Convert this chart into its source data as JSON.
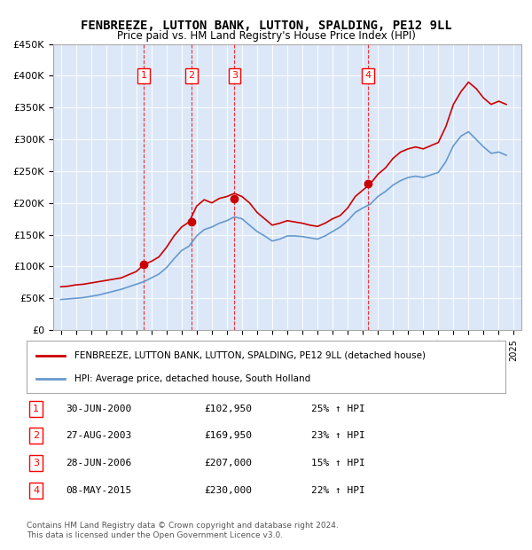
{
  "title": "FENBREEZE, LUTTON BANK, LUTTON, SPALDING, PE12 9LL",
  "subtitle": "Price paid vs. HM Land Registry's House Price Index (HPI)",
  "ylabel": "",
  "background_color": "#f0f4ff",
  "plot_background": "#e8eeff",
  "red_color": "#cc0000",
  "blue_color": "#6699cc",
  "ylim": [
    0,
    450000
  ],
  "yticks": [
    0,
    50000,
    100000,
    150000,
    200000,
    250000,
    300000,
    350000,
    400000,
    450000
  ],
  "ytick_labels": [
    "£0",
    "£50K",
    "£100K",
    "£150K",
    "£200K",
    "£250K",
    "£300K",
    "£350K",
    "£400K",
    "£450K"
  ],
  "xlim_start": 1994.5,
  "xlim_end": 2025.5,
  "sales": [
    {
      "num": 1,
      "year": 2000.5,
      "price": 102950,
      "date": "30-JUN-2000",
      "pct": "25%"
    },
    {
      "num": 2,
      "year": 2003.65,
      "price": 169950,
      "date": "27-AUG-2003",
      "pct": "23%"
    },
    {
      "num": 3,
      "year": 2006.5,
      "price": 207000,
      "date": "28-JUN-2006",
      "pct": "15%"
    },
    {
      "num": 4,
      "year": 2015.35,
      "price": 230000,
      "date": "08-MAY-2015",
      "pct": "22%"
    }
  ],
  "legend_line1": "FENBREEZE, LUTTON BANK, LUTTON, SPALDING, PE12 9LL (detached house)",
  "legend_line2": "HPI: Average price, detached house, South Holland",
  "footer": "Contains HM Land Registry data © Crown copyright and database right 2024.\nThis data is licensed under the Open Government Licence v3.0.",
  "red_line_years": [
    1995,
    1995.5,
    1996,
    1996.5,
    1997,
    1997.5,
    1998,
    1998.5,
    1999,
    1999.5,
    2000,
    2000.5,
    2001,
    2001.5,
    2002,
    2002.5,
    2003,
    2003.5,
    2004,
    2004.5,
    2005,
    2005.5,
    2006,
    2006.5,
    2007,
    2007.5,
    2008,
    2008.5,
    2009,
    2009.5,
    2010,
    2010.5,
    2011,
    2011.5,
    2012,
    2012.5,
    2013,
    2013.5,
    2014,
    2014.5,
    2015,
    2015.5,
    2016,
    2016.5,
    2017,
    2017.5,
    2018,
    2018.5,
    2019,
    2019.5,
    2020,
    2020.5,
    2021,
    2021.5,
    2022,
    2022.5,
    2023,
    2023.5,
    2024,
    2024.5
  ],
  "red_line_values": [
    68000,
    69000,
    71000,
    72000,
    74000,
    76000,
    78000,
    80000,
    82000,
    87000,
    92000,
    103000,
    108000,
    115000,
    130000,
    148000,
    162000,
    170000,
    195000,
    205000,
    200000,
    207000,
    210000,
    215000,
    210000,
    200000,
    185000,
    175000,
    165000,
    168000,
    172000,
    170000,
    168000,
    165000,
    163000,
    168000,
    175000,
    180000,
    192000,
    210000,
    220000,
    230000,
    245000,
    255000,
    270000,
    280000,
    285000,
    288000,
    285000,
    290000,
    295000,
    320000,
    355000,
    375000,
    390000,
    380000,
    365000,
    355000,
    360000,
    355000
  ],
  "blue_line_years": [
    1995,
    1995.5,
    1996,
    1996.5,
    1997,
    1997.5,
    1998,
    1998.5,
    1999,
    1999.5,
    2000,
    2000.5,
    2001,
    2001.5,
    2002,
    2002.5,
    2003,
    2003.5,
    2004,
    2004.5,
    2005,
    2005.5,
    2006,
    2006.5,
    2007,
    2007.5,
    2008,
    2008.5,
    2009,
    2009.5,
    2010,
    2010.5,
    2011,
    2011.5,
    2012,
    2012.5,
    2013,
    2013.5,
    2014,
    2014.5,
    2015,
    2015.5,
    2016,
    2016.5,
    2017,
    2017.5,
    2018,
    2018.5,
    2019,
    2019.5,
    2020,
    2020.5,
    2021,
    2021.5,
    2022,
    2022.5,
    2023,
    2023.5,
    2024,
    2024.5
  ],
  "blue_line_values": [
    48000,
    49000,
    50000,
    51000,
    53000,
    55000,
    58000,
    61000,
    64000,
    68000,
    72000,
    76000,
    82000,
    88000,
    98000,
    112000,
    125000,
    132000,
    148000,
    158000,
    162000,
    168000,
    172000,
    178000,
    175000,
    165000,
    155000,
    148000,
    140000,
    143000,
    148000,
    148000,
    147000,
    145000,
    143000,
    148000,
    155000,
    162000,
    172000,
    185000,
    192000,
    198000,
    210000,
    218000,
    228000,
    235000,
    240000,
    242000,
    240000,
    244000,
    248000,
    265000,
    290000,
    305000,
    312000,
    300000,
    288000,
    278000,
    280000,
    275000
  ]
}
